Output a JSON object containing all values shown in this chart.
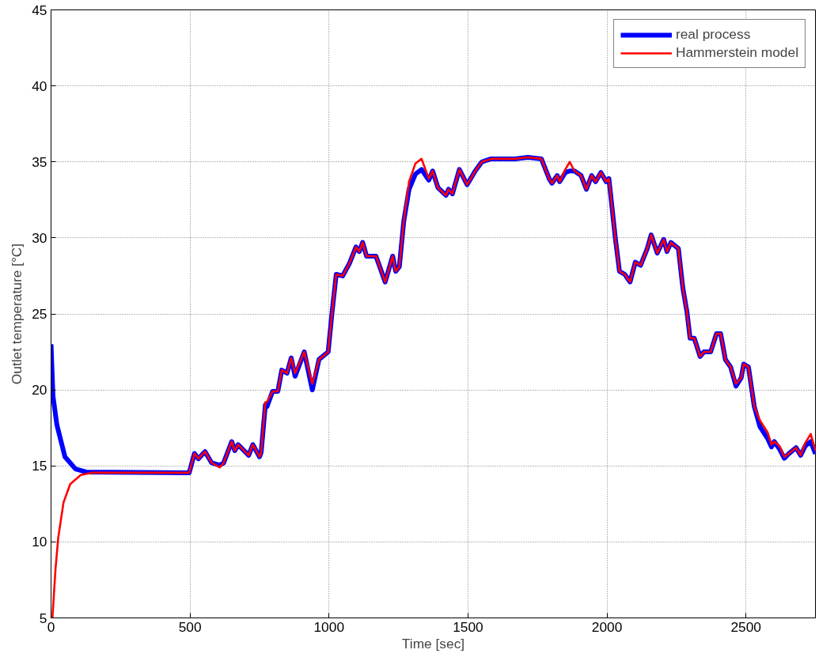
{
  "chart_data": {
    "type": "line",
    "xlabel": "Time [sec]",
    "ylabel": "Outlet temperature [°C]",
    "xlim": [
      0,
      2750
    ],
    "ylim": [
      5,
      45
    ],
    "xticks": [
      0,
      500,
      1000,
      1500,
      2000,
      2500
    ],
    "yticks": [
      5,
      10,
      15,
      20,
      25,
      30,
      35,
      40,
      45
    ],
    "grid": true,
    "legend": "top right",
    "line_style": "solid",
    "marker": "none",
    "series": [
      {
        "name": "real process",
        "color": "#0000ff",
        "x": [
          0,
          7,
          21,
          50,
          88,
          126,
          497,
          516,
          530,
          554,
          578,
          607,
          621,
          650,
          661,
          673,
          711,
          726,
          750,
          756,
          771,
          777,
          797,
          816,
          830,
          849,
          864,
          878,
          911,
          940,
          964,
          997,
          1011,
          1026,
          1049,
          1073,
          1097,
          1109,
          1121,
          1135,
          1169,
          1202,
          1229,
          1240,
          1253,
          1269,
          1288,
          1311,
          1333,
          1359,
          1373,
          1392,
          1421,
          1430,
          1444,
          1469,
          1497,
          1526,
          1550,
          1583,
          1669,
          1716,
          1764,
          1792,
          1802,
          1821,
          1830,
          1850,
          1866,
          1883,
          1907,
          1926,
          1945,
          1959,
          1978,
          1997,
          2007,
          2030,
          2045,
          2064,
          2083,
          2102,
          2121,
          2145,
          2159,
          2181,
          2204,
          2216,
          2230,
          2257,
          2273,
          2288,
          2299,
          2314,
          2335,
          2349,
          2373,
          2394,
          2409,
          2426,
          2445,
          2464,
          2483,
          2492,
          2509,
          2530,
          2550,
          2578,
          2592,
          2602,
          2621,
          2638,
          2654,
          2680,
          2697,
          2713,
          2733,
          2750
        ],
        "values": [
          23.0,
          19.6,
          17.7,
          15.6,
          14.8,
          14.6,
          14.55,
          15.82,
          15.47,
          15.94,
          15.2,
          15.05,
          15.2,
          16.6,
          16.0,
          16.4,
          15.7,
          16.4,
          15.6,
          15.9,
          19.0,
          18.9,
          19.9,
          19.9,
          21.3,
          21.1,
          22.1,
          20.9,
          22.5,
          20.0,
          22.0,
          22.5,
          25.1,
          27.6,
          27.5,
          28.3,
          29.4,
          29.1,
          29.7,
          28.8,
          28.8,
          27.1,
          28.8,
          27.8,
          28.1,
          31.1,
          33.2,
          34.2,
          34.5,
          33.8,
          34.4,
          33.3,
          32.8,
          33.2,
          32.9,
          34.5,
          33.5,
          34.4,
          35.0,
          35.2,
          35.2,
          35.3,
          35.2,
          33.9,
          33.6,
          34.1,
          33.7,
          34.3,
          34.4,
          34.4,
          34.1,
          33.2,
          34.1,
          33.7,
          34.3,
          33.7,
          33.9,
          30.0,
          27.8,
          27.6,
          27.1,
          28.4,
          28.2,
          29.3,
          30.2,
          29.0,
          29.9,
          29.1,
          29.7,
          29.3,
          26.7,
          25.1,
          23.4,
          23.4,
          22.2,
          22.5,
          22.5,
          23.7,
          23.7,
          22.0,
          21.5,
          20.25,
          20.8,
          21.7,
          21.5,
          18.9,
          17.6,
          16.8,
          16.25,
          16.6,
          16.1,
          15.5,
          15.8,
          16.2,
          15.7,
          16.3,
          16.6,
          15.8
        ]
      },
      {
        "name": "Hammerstein model",
        "color": "#ff0000",
        "x": [
          5,
          16,
          26,
          45,
          69,
          107,
          145,
          497,
          516,
          530,
          554,
          578,
          607,
          621,
          650,
          661,
          673,
          711,
          726,
          750,
          756,
          771,
          777,
          797,
          816,
          830,
          849,
          864,
          878,
          911,
          940,
          964,
          997,
          1011,
          1026,
          1049,
          1073,
          1097,
          1109,
          1121,
          1135,
          1169,
          1202,
          1229,
          1240,
          1253,
          1269,
          1288,
          1311,
          1333,
          1359,
          1373,
          1392,
          1421,
          1430,
          1444,
          1469,
          1497,
          1526,
          1550,
          1583,
          1669,
          1716,
          1764,
          1792,
          1802,
          1821,
          1830,
          1850,
          1866,
          1883,
          1907,
          1926,
          1945,
          1959,
          1978,
          1997,
          2007,
          2030,
          2045,
          2064,
          2083,
          2102,
          2121,
          2145,
          2159,
          2181,
          2204,
          2216,
          2230,
          2257,
          2273,
          2288,
          2299,
          2314,
          2335,
          2349,
          2373,
          2394,
          2409,
          2426,
          2445,
          2464,
          2483,
          2492,
          2509,
          2530,
          2550,
          2578,
          2592,
          2602,
          2621,
          2638,
          2654,
          2680,
          2697,
          2713,
          2733,
          2750
        ],
        "values": [
          5.0,
          8.2,
          10.3,
          12.6,
          13.8,
          14.4,
          14.55,
          14.55,
          15.82,
          15.47,
          15.94,
          15.2,
          14.9,
          15.2,
          16.6,
          16.0,
          16.4,
          15.7,
          16.4,
          15.6,
          15.9,
          19.2,
          19.2,
          19.9,
          19.9,
          21.3,
          21.1,
          22.1,
          21.1,
          22.5,
          20.4,
          22.0,
          22.5,
          25.1,
          27.6,
          27.5,
          28.3,
          29.4,
          29.1,
          29.7,
          28.8,
          28.8,
          27.1,
          28.8,
          27.8,
          28.1,
          31.1,
          33.7,
          34.9,
          35.2,
          33.9,
          34.4,
          33.3,
          32.8,
          33.2,
          32.9,
          34.5,
          33.5,
          34.4,
          35.0,
          35.2,
          35.2,
          35.3,
          35.2,
          33.9,
          33.6,
          34.1,
          33.7,
          34.5,
          35.0,
          34.4,
          34.1,
          33.2,
          34.1,
          33.7,
          34.3,
          33.7,
          33.9,
          30.0,
          27.8,
          27.6,
          27.1,
          28.4,
          28.2,
          29.3,
          30.2,
          29.0,
          29.9,
          29.1,
          29.7,
          29.3,
          26.7,
          25.1,
          23.4,
          23.4,
          22.2,
          22.5,
          22.5,
          23.7,
          23.7,
          22.0,
          21.5,
          20.4,
          20.8,
          21.7,
          21.5,
          18.9,
          18.0,
          17.2,
          16.4,
          16.6,
          16.3,
          15.6,
          15.8,
          16.2,
          15.7,
          16.5,
          17.1,
          16.0
        ]
      }
    ]
  }
}
